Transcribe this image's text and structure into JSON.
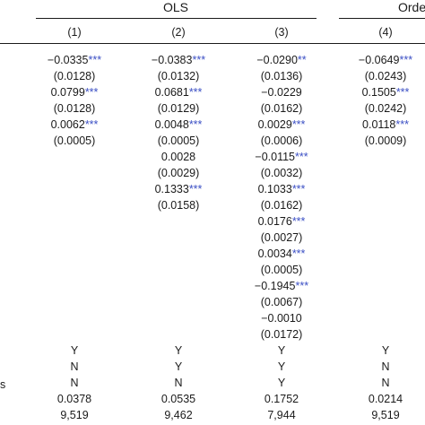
{
  "headers": {
    "group_ols": "OLS",
    "group_ordered": "Orde",
    "columns": [
      "(1)",
      "(2)",
      "(3)",
      "(4)"
    ]
  },
  "row_label_fragment": "s",
  "significance_color": "#3b4fc4",
  "columns": [
    {
      "cells": [
        {
          "v": "−0.0335",
          "s": "***"
        },
        {
          "v": "(0.0128)",
          "s": ""
        },
        {
          "v": "0.0799",
          "s": "***"
        },
        {
          "v": "(0.0128)",
          "s": ""
        },
        {
          "v": "0.0062",
          "s": "***"
        },
        {
          "v": "(0.0005)",
          "s": ""
        },
        {
          "v": "",
          "s": ""
        },
        {
          "v": "",
          "s": ""
        },
        {
          "v": "",
          "s": ""
        },
        {
          "v": "",
          "s": ""
        },
        {
          "v": "",
          "s": ""
        },
        {
          "v": "",
          "s": ""
        },
        {
          "v": "",
          "s": ""
        },
        {
          "v": "",
          "s": ""
        },
        {
          "v": "",
          "s": ""
        },
        {
          "v": "",
          "s": ""
        },
        {
          "v": "",
          "s": ""
        },
        {
          "v": "",
          "s": ""
        }
      ],
      "controls": [
        "Y",
        "N",
        "N"
      ],
      "r2": "0.0378",
      "n": "9,519"
    },
    {
      "cells": [
        {
          "v": "−0.0383",
          "s": "***"
        },
        {
          "v": "(0.0132)",
          "s": ""
        },
        {
          "v": "0.0681",
          "s": "***"
        },
        {
          "v": "(0.0129)",
          "s": ""
        },
        {
          "v": "0.0048",
          "s": "***"
        },
        {
          "v": "(0.0005)",
          "s": ""
        },
        {
          "v": "0.0028",
          "s": ""
        },
        {
          "v": "(0.0029)",
          "s": ""
        },
        {
          "v": "0.1333",
          "s": "***"
        },
        {
          "v": "(0.0158)",
          "s": ""
        },
        {
          "v": "",
          "s": ""
        },
        {
          "v": "",
          "s": ""
        },
        {
          "v": "",
          "s": ""
        },
        {
          "v": "",
          "s": ""
        },
        {
          "v": "",
          "s": ""
        },
        {
          "v": "",
          "s": ""
        },
        {
          "v": "",
          "s": ""
        },
        {
          "v": "",
          "s": ""
        }
      ],
      "controls": [
        "Y",
        "Y",
        "N"
      ],
      "r2": "0.0535",
      "n": "9,462"
    },
    {
      "cells": [
        {
          "v": "−0.0290",
          "s": "**"
        },
        {
          "v": "(0.0136)",
          "s": ""
        },
        {
          "v": "−0.0229",
          "s": ""
        },
        {
          "v": "(0.0162)",
          "s": ""
        },
        {
          "v": "0.0029",
          "s": "***"
        },
        {
          "v": "(0.0006)",
          "s": ""
        },
        {
          "v": "−0.0115",
          "s": "***"
        },
        {
          "v": "(0.0032)",
          "s": ""
        },
        {
          "v": "0.1033",
          "s": "***"
        },
        {
          "v": "(0.0162)",
          "s": ""
        },
        {
          "v": "0.0176",
          "s": "***"
        },
        {
          "v": "(0.0027)",
          "s": ""
        },
        {
          "v": "0.0034",
          "s": "***"
        },
        {
          "v": "(0.0005)",
          "s": ""
        },
        {
          "v": "−0.1945",
          "s": "***"
        },
        {
          "v": "(0.0067)",
          "s": ""
        },
        {
          "v": "−0.0010",
          "s": ""
        },
        {
          "v": "(0.0172)",
          "s": ""
        }
      ],
      "controls": [
        "Y",
        "Y",
        "Y"
      ],
      "r2": "0.1752",
      "n": "7,944"
    },
    {
      "cells": [
        {
          "v": "−0.0649",
          "s": "***"
        },
        {
          "v": "(0.0243)",
          "s": ""
        },
        {
          "v": "0.1505",
          "s": "***"
        },
        {
          "v": "(0.0242)",
          "s": ""
        },
        {
          "v": "0.0118",
          "s": "***"
        },
        {
          "v": "(0.0009)",
          "s": ""
        },
        {
          "v": "",
          "s": ""
        },
        {
          "v": "",
          "s": ""
        },
        {
          "v": "",
          "s": ""
        },
        {
          "v": "",
          "s": ""
        },
        {
          "v": "",
          "s": ""
        },
        {
          "v": "",
          "s": ""
        },
        {
          "v": "",
          "s": ""
        },
        {
          "v": "",
          "s": ""
        },
        {
          "v": "",
          "s": ""
        },
        {
          "v": "",
          "s": ""
        },
        {
          "v": "",
          "s": ""
        },
        {
          "v": "",
          "s": ""
        }
      ],
      "controls": [
        "Y",
        "N",
        "N"
      ],
      "r2": "0.0214",
      "n": "9,519"
    }
  ]
}
